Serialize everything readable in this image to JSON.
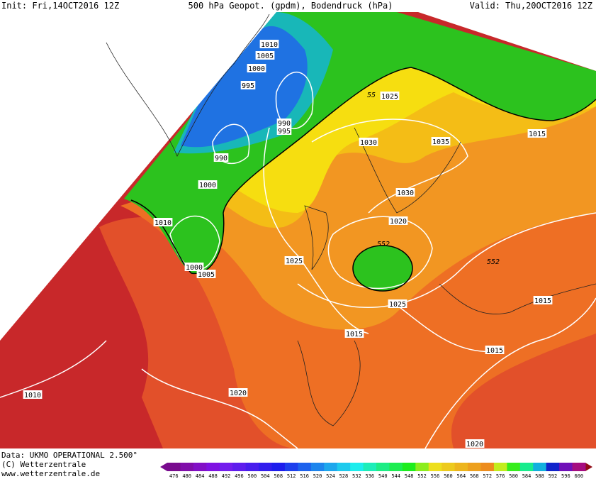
{
  "header": {
    "init": "Init: Fri,14OCT2016 12Z",
    "title": "500 hPa Geopot. (gpdm), Bodendruck (hPa)",
    "valid": "Valid: Thu,20OCT2016 12Z"
  },
  "contour_labels": [
    "1010",
    "1005",
    "1000",
    "995",
    "990",
    "995",
    "990",
    "1000",
    "1010",
    "1000",
    "1005",
    "1025",
    "55",
    "1025",
    "1030",
    "1035",
    "1030",
    "1020",
    "552",
    "1025",
    "1015",
    "1015",
    "1015",
    "1020",
    "1010",
    "1020",
    "1015",
    "552"
  ],
  "footer": {
    "data": "Data: UKMO OPERATIONAL 2.500°",
    "copyright": "(C) Wetterzentrale",
    "url": "www.wetterzentrale.de"
  },
  "colorbar": {
    "labels": [
      476,
      480,
      484,
      488,
      492,
      496,
      500,
      504,
      508,
      512,
      516,
      520,
      524,
      528,
      532,
      536,
      540,
      544,
      548,
      552,
      556,
      560,
      564,
      568,
      572,
      576,
      580,
      584,
      588,
      592,
      596,
      600
    ]
  }
}
